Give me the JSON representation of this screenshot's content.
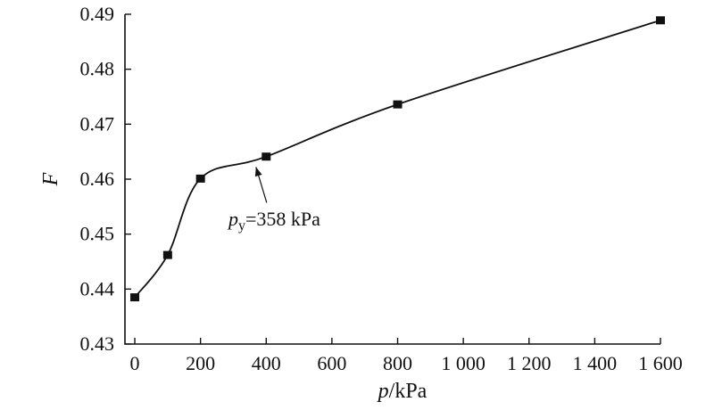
{
  "chart_data": {
    "type": "line",
    "xlabel": {
      "var": "p",
      "unit": "/kPa"
    },
    "ylabel": "F",
    "xlim": [
      -30,
      1600
    ],
    "ylim": [
      0.43,
      0.49
    ],
    "x_ticks": [
      0,
      200,
      400,
      600,
      800,
      1000,
      1200,
      1400,
      1600
    ],
    "x_tick_labels": [
      "0",
      "200",
      "400",
      "600",
      "800",
      "1 000",
      "1 200",
      "1 400",
      "1 600"
    ],
    "y_ticks": [
      0.43,
      0.44,
      0.45,
      0.46,
      0.47,
      0.48,
      0.49
    ],
    "y_tick_labels": [
      "0.43",
      "0.44",
      "0.45",
      "0.46",
      "0.47",
      "0.48",
      "0.49"
    ],
    "grid": false,
    "series": [
      {
        "x": [
          0,
          100,
          200,
          400,
          800,
          1600
        ],
        "y": [
          0.4385,
          0.4462,
          0.4601,
          0.4641,
          0.4736,
          0.4889
        ],
        "marker": "square",
        "color": "#111111"
      }
    ],
    "annotations": [
      {
        "var": "p",
        "sub": "y",
        "text": "=358 kPa",
        "arrow_to": [
          358,
          0.4635
        ]
      }
    ]
  }
}
